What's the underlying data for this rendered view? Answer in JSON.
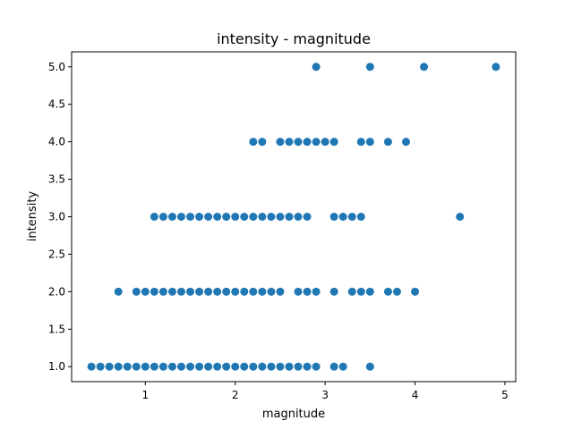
{
  "chart_data": {
    "type": "scatter",
    "title": "intensity - magnitude",
    "xlabel": "magnitude",
    "ylabel": "intensity",
    "xlim": [
      0.18,
      5.12
    ],
    "ylim": [
      0.8,
      5.2
    ],
    "xticks": [
      1,
      2,
      3,
      4,
      5
    ],
    "xtick_labels": [
      "1",
      "2",
      "3",
      "4",
      "5"
    ],
    "yticks": [
      1.0,
      1.5,
      2.0,
      2.5,
      3.0,
      3.5,
      4.0,
      4.5,
      5.0
    ],
    "ytick_labels": [
      "1.0",
      "1.5",
      "2.0",
      "2.5",
      "3.0",
      "3.5",
      "4.0",
      "4.5",
      "5.0"
    ],
    "grid": false,
    "marker_color": "#1f77b4",
    "series": [
      {
        "points": [
          [
            0.4,
            1
          ],
          [
            0.5,
            1
          ],
          [
            0.6,
            1
          ],
          [
            0.7,
            1
          ],
          [
            0.8,
            1
          ],
          [
            0.9,
            1
          ],
          [
            1.0,
            1
          ],
          [
            1.1,
            1
          ],
          [
            1.2,
            1
          ],
          [
            1.3,
            1
          ],
          [
            1.4,
            1
          ],
          [
            1.5,
            1
          ],
          [
            1.6,
            1
          ],
          [
            1.7,
            1
          ],
          [
            1.8,
            1
          ],
          [
            1.9,
            1
          ],
          [
            2.0,
            1
          ],
          [
            2.1,
            1
          ],
          [
            2.2,
            1
          ],
          [
            2.3,
            1
          ],
          [
            2.4,
            1
          ],
          [
            2.5,
            1
          ],
          [
            2.6,
            1
          ],
          [
            2.7,
            1
          ],
          [
            2.8,
            1
          ],
          [
            2.9,
            1
          ],
          [
            3.1,
            1
          ],
          [
            3.2,
            1
          ],
          [
            3.5,
            1
          ],
          [
            0.7,
            2
          ],
          [
            0.9,
            2
          ],
          [
            1.0,
            2
          ],
          [
            1.1,
            2
          ],
          [
            1.2,
            2
          ],
          [
            1.3,
            2
          ],
          [
            1.4,
            2
          ],
          [
            1.5,
            2
          ],
          [
            1.6,
            2
          ],
          [
            1.7,
            2
          ],
          [
            1.8,
            2
          ],
          [
            1.9,
            2
          ],
          [
            2.0,
            2
          ],
          [
            2.1,
            2
          ],
          [
            2.2,
            2
          ],
          [
            2.3,
            2
          ],
          [
            2.4,
            2
          ],
          [
            2.5,
            2
          ],
          [
            2.7,
            2
          ],
          [
            2.8,
            2
          ],
          [
            2.9,
            2
          ],
          [
            3.1,
            2
          ],
          [
            3.3,
            2
          ],
          [
            3.4,
            2
          ],
          [
            3.5,
            2
          ],
          [
            3.7,
            2
          ],
          [
            3.8,
            2
          ],
          [
            4.0,
            2
          ],
          [
            1.1,
            3
          ],
          [
            1.2,
            3
          ],
          [
            1.3,
            3
          ],
          [
            1.4,
            3
          ],
          [
            1.5,
            3
          ],
          [
            1.6,
            3
          ],
          [
            1.7,
            3
          ],
          [
            1.8,
            3
          ],
          [
            1.9,
            3
          ],
          [
            2.0,
            3
          ],
          [
            2.1,
            3
          ],
          [
            2.2,
            3
          ],
          [
            2.3,
            3
          ],
          [
            2.4,
            3
          ],
          [
            2.5,
            3
          ],
          [
            2.6,
            3
          ],
          [
            2.7,
            3
          ],
          [
            2.8,
            3
          ],
          [
            3.1,
            3
          ],
          [
            3.2,
            3
          ],
          [
            3.3,
            3
          ],
          [
            3.4,
            3
          ],
          [
            4.5,
            3
          ],
          [
            2.2,
            4
          ],
          [
            2.3,
            4
          ],
          [
            2.5,
            4
          ],
          [
            2.6,
            4
          ],
          [
            2.7,
            4
          ],
          [
            2.8,
            4
          ],
          [
            2.9,
            4
          ],
          [
            3.0,
            4
          ],
          [
            3.1,
            4
          ],
          [
            3.4,
            4
          ],
          [
            3.5,
            4
          ],
          [
            3.7,
            4
          ],
          [
            3.9,
            4
          ],
          [
            2.9,
            5
          ],
          [
            3.5,
            5
          ],
          [
            4.1,
            5
          ],
          [
            4.9,
            5
          ]
        ]
      }
    ]
  }
}
